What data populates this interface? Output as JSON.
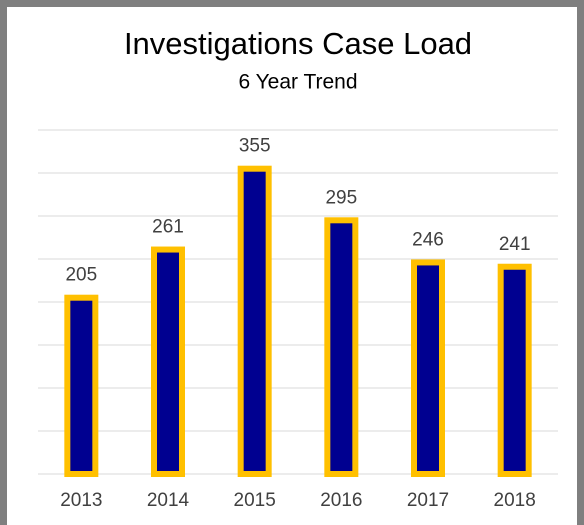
{
  "chart_data": {
    "type": "bar",
    "title": "Investigations Case Load",
    "subtitle": "6 Year Trend",
    "categories": [
      "2013",
      "2014",
      "2015",
      "2016",
      "2017",
      "2018"
    ],
    "values": [
      205,
      261,
      355,
      295,
      246,
      241
    ],
    "color": "#000090",
    "edge_color": "#ffc000",
    "ylim": [
      0,
      400
    ],
    "yticks": [
      0,
      50,
      100,
      150,
      200,
      250,
      300,
      350,
      400
    ],
    "grid": true
  }
}
